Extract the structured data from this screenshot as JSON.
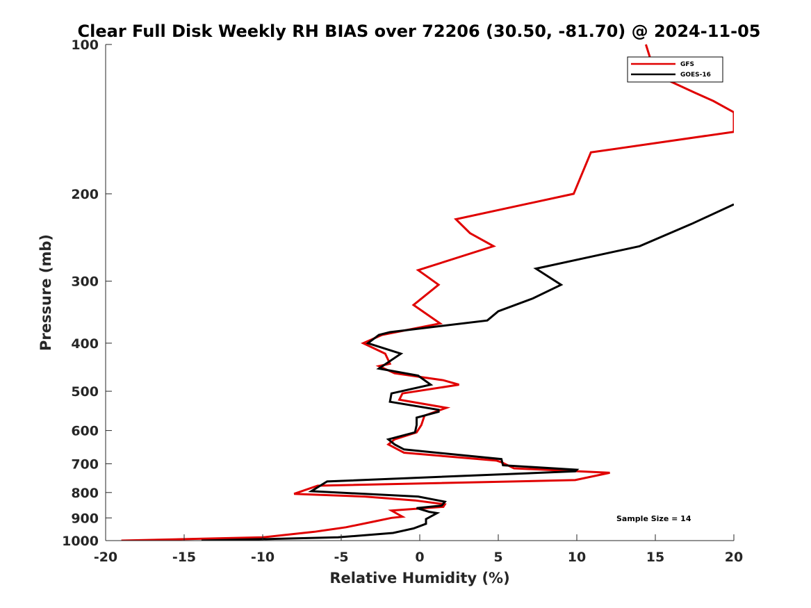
{
  "chart_data": {
    "type": "line",
    "title": "Clear Full Disk Weekly RH BIAS over 72206 (30.50, -81.70) @ 2024-11-05",
    "xlabel": "Relative Humidity (%)",
    "ylabel": "Pressure (mb)",
    "xlim": [
      -20,
      20
    ],
    "ylim": [
      100,
      1000
    ],
    "y_scale": "log",
    "y_reversed": true,
    "x_ticks": [
      -20,
      -15,
      -10,
      -5,
      0,
      5,
      10,
      15,
      20
    ],
    "y_ticks": [
      100,
      200,
      300,
      400,
      500,
      600,
      700,
      800,
      900,
      1000
    ],
    "grid": false,
    "legend_position": "top-right",
    "annotation": "Sample Size = 14",
    "series": [
      {
        "name": "GFS",
        "color": "#e00000",
        "points": [
          [
            14.4,
            100
          ],
          [
            15.0,
            115
          ],
          [
            17.5,
            125
          ],
          [
            18.7,
            130
          ],
          [
            20.0,
            137
          ],
          [
            20.0,
            150
          ],
          [
            10.9,
            165
          ],
          [
            9.8,
            200
          ],
          [
            2.3,
            225
          ],
          [
            3.2,
            240
          ],
          [
            4.7,
            255
          ],
          [
            -0.1,
            285
          ],
          [
            1.2,
            305
          ],
          [
            -0.4,
            335
          ],
          [
            1.3,
            365
          ],
          [
            -2.4,
            385
          ],
          [
            -3.6,
            400
          ],
          [
            -2.2,
            420
          ],
          [
            -1.9,
            440
          ],
          [
            -2.6,
            445
          ],
          [
            -1.6,
            460
          ],
          [
            1.5,
            475
          ],
          [
            2.5,
            485
          ],
          [
            -1.1,
            505
          ],
          [
            -1.3,
            520
          ],
          [
            1.7,
            540
          ],
          [
            0.3,
            560
          ],
          [
            0.1,
            585
          ],
          [
            -0.2,
            605
          ],
          [
            -1.6,
            625
          ],
          [
            -2.0,
            640
          ],
          [
            -1.0,
            665
          ],
          [
            4.9,
            690
          ],
          [
            5.2,
            695
          ],
          [
            6.0,
            715
          ],
          [
            12.1,
            730
          ],
          [
            9.9,
            755
          ],
          [
            -6.5,
            775
          ],
          [
            -8.0,
            805
          ],
          [
            -3.5,
            815
          ],
          [
            -0.3,
            830
          ],
          [
            1.6,
            845
          ],
          [
            1.5,
            855
          ],
          [
            -1.8,
            870
          ],
          [
            -1.1,
            895
          ],
          [
            -1.8,
            900
          ],
          [
            -2.9,
            915
          ],
          [
            -4.7,
            940
          ],
          [
            -6.7,
            960
          ],
          [
            -10.0,
            985
          ],
          [
            -19.0,
            1000
          ]
        ]
      },
      {
        "name": "GOES-16",
        "color": "#000000",
        "points": [
          [
            20.0,
            210
          ],
          [
            17.3,
            230
          ],
          [
            14.0,
            255
          ],
          [
            7.4,
            283
          ],
          [
            9.0,
            305
          ],
          [
            7.2,
            325
          ],
          [
            5.0,
            345
          ],
          [
            4.3,
            360
          ],
          [
            -1.9,
            380
          ],
          [
            -2.6,
            385
          ],
          [
            -3.3,
            400
          ],
          [
            -1.2,
            420
          ],
          [
            -2.6,
            450
          ],
          [
            -0.1,
            465
          ],
          [
            0.7,
            485
          ],
          [
            -1.8,
            505
          ],
          [
            -1.9,
            525
          ],
          [
            1.2,
            545
          ],
          [
            1.2,
            550
          ],
          [
            -0.2,
            565
          ],
          [
            -0.2,
            585
          ],
          [
            -0.3,
            605
          ],
          [
            -2.0,
            625
          ],
          [
            -1.6,
            640
          ],
          [
            -1.0,
            655
          ],
          [
            5.2,
            685
          ],
          [
            5.3,
            705
          ],
          [
            10.0,
            720
          ],
          [
            9.9,
            725
          ],
          [
            -5.9,
            760
          ],
          [
            -6.9,
            795
          ],
          [
            -0.1,
            815
          ],
          [
            1.6,
            835
          ],
          [
            1.4,
            850
          ],
          [
            -0.2,
            860
          ],
          [
            0.6,
            875
          ],
          [
            1.1,
            880
          ],
          [
            0.4,
            905
          ],
          [
            0.4,
            925
          ],
          [
            -0.4,
            945
          ],
          [
            -1.7,
            965
          ],
          [
            -5.2,
            985
          ],
          [
            -13.9,
            1000
          ]
        ]
      }
    ]
  }
}
